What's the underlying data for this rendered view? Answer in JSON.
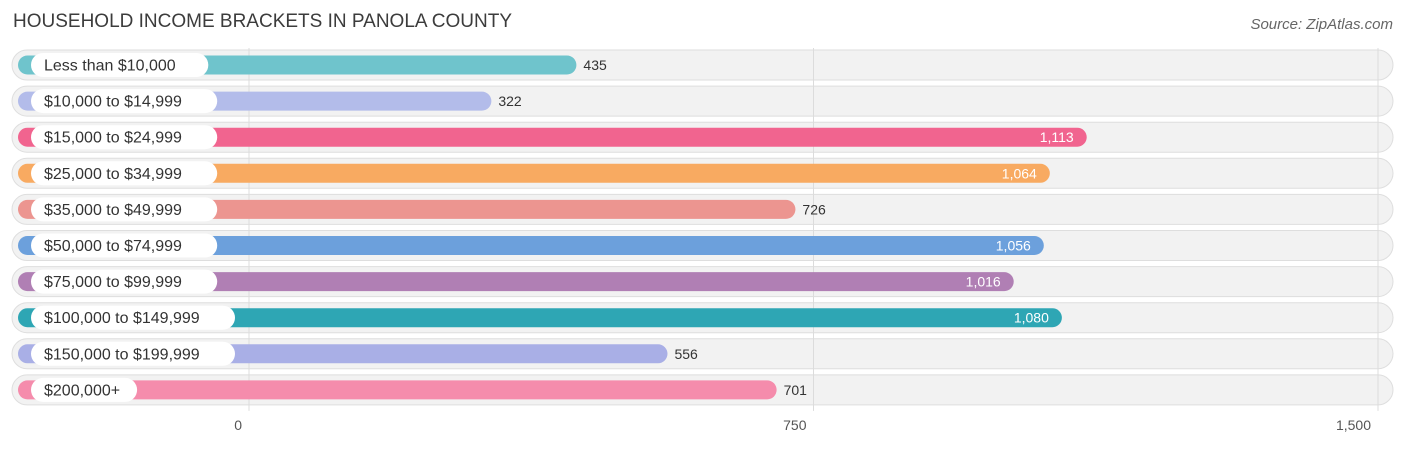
{
  "chart_data": {
    "type": "bar",
    "orientation": "horizontal",
    "title": "HOUSEHOLD INCOME BRACKETS IN PANOLA COUNTY",
    "source": "Source: ZipAtlas.com",
    "categories": [
      "Less than $10,000",
      "$10,000 to $14,999",
      "$15,000 to $24,999",
      "$25,000 to $34,999",
      "$35,000 to $49,999",
      "$50,000 to $74,999",
      "$75,000 to $99,999",
      "$100,000 to $149,999",
      "$150,000 to $199,999",
      "$200,000+"
    ],
    "values": [
      435,
      322,
      1113,
      1064,
      726,
      1056,
      1016,
      1080,
      556,
      701
    ],
    "value_labels": [
      "435",
      "322",
      "1,113",
      "1,064",
      "726",
      "1,056",
      "1,016",
      "1,080",
      "556",
      "701"
    ],
    "colors": [
      "#6fc4cc",
      "#b3bcea",
      "#f1648f",
      "#f8aa61",
      "#ec9590",
      "#6ca0dc",
      "#b07fb4",
      "#2ea6b4",
      "#a9afe6",
      "#f58cac"
    ],
    "xlim": [
      0,
      1500
    ],
    "xticks": [
      0,
      750,
      1500
    ],
    "xtick_labels": [
      "0",
      "750",
      "1,500"
    ],
    "grid": true
  }
}
